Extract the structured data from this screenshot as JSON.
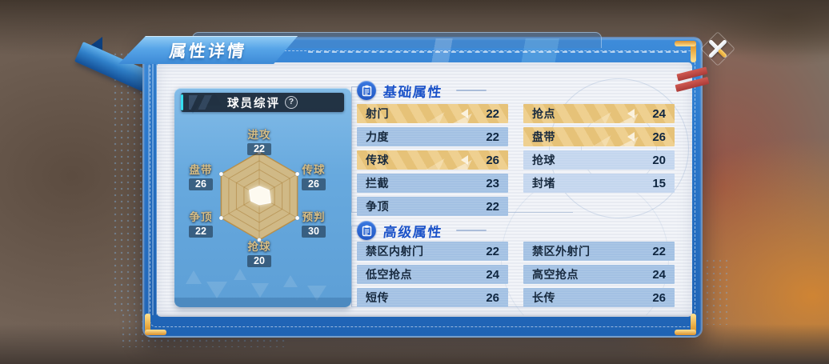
{
  "window": {
    "title": "属性详情",
    "close_icon": "close-x"
  },
  "radar_card": {
    "title": "球员综评",
    "help_icon": "?"
  },
  "chart_data": {
    "type": "radar",
    "title": "球员综评",
    "categories": [
      "进攻",
      "传球",
      "预判",
      "抢球",
      "争顶",
      "盘带"
    ],
    "values": [
      22,
      26,
      30,
      20,
      22,
      26
    ],
    "scale_max": 100,
    "rings": 5,
    "start_axis": "top",
    "direction": "clockwise",
    "area_color": "#e3bc77",
    "data_fill_color": "#fdfaf0"
  },
  "sections": [
    {
      "title": "基础属性",
      "icon": "clipboard-icon",
      "rows": [
        {
          "label": "射门",
          "value": 22,
          "variant": "gold"
        },
        {
          "label": "抢点",
          "value": 24,
          "variant": "gold"
        },
        {
          "label": "力度",
          "value": 22,
          "variant": "blue"
        },
        {
          "label": "盘带",
          "value": 26,
          "variant": "gold"
        },
        {
          "label": "传球",
          "value": 26,
          "variant": "gold"
        },
        {
          "label": "抢球",
          "value": 20,
          "variant": "light"
        },
        {
          "label": "拦截",
          "value": 23,
          "variant": "blue"
        },
        {
          "label": "封堵",
          "value": 15,
          "variant": "light"
        },
        {
          "label": "争顶",
          "value": 22,
          "variant": "blue"
        }
      ]
    },
    {
      "title": "高级属性",
      "icon": "clipboard-icon",
      "rows": [
        {
          "label": "禁区内射门",
          "value": 22,
          "variant": "blue"
        },
        {
          "label": "禁区外射门",
          "value": 22,
          "variant": "blue"
        },
        {
          "label": "低空抢点",
          "value": 24,
          "variant": "blue"
        },
        {
          "label": "高空抢点",
          "value": 24,
          "variant": "blue"
        },
        {
          "label": "短传",
          "value": 26,
          "variant": "blue"
        },
        {
          "label": "长传",
          "value": 26,
          "variant": "blue"
        }
      ]
    }
  ],
  "colors": {
    "accent_blue": "#2a78cc",
    "section_title_blue": "#1b52c8",
    "gold_row": "#ecc87e",
    "blue_row": "#a3c1e3",
    "light_row": "#c4d6ee",
    "gold_corner": "#e8a83e",
    "cyan_accent": "#35dff0",
    "red_tag": "#c24a46"
  }
}
